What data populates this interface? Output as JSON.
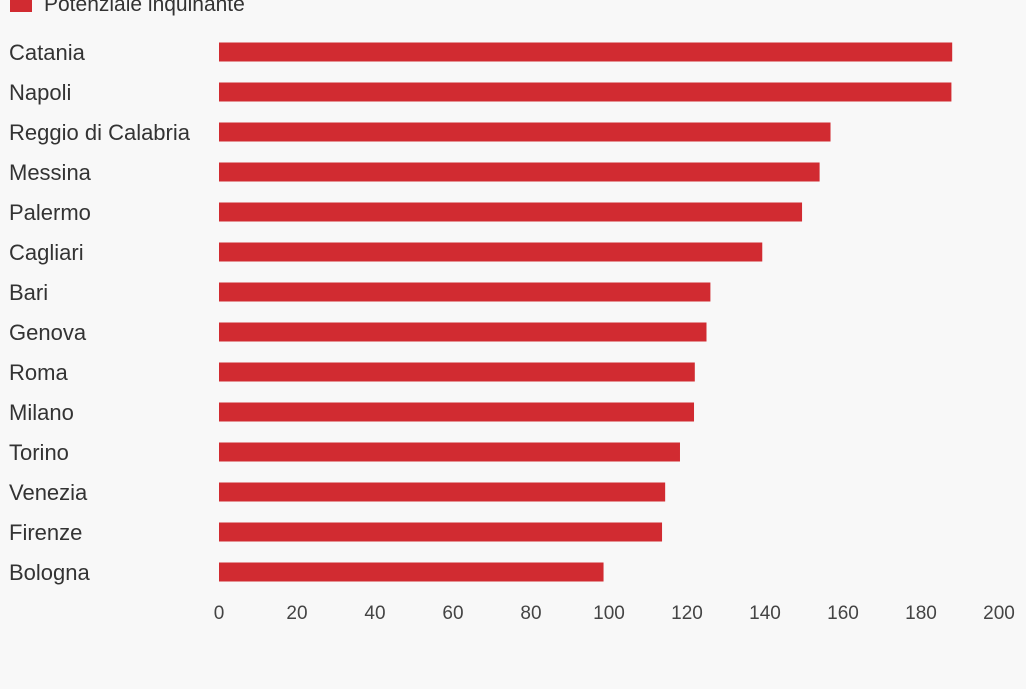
{
  "chart_data": {
    "type": "bar",
    "orientation": "horizontal",
    "categories": [
      "Catania",
      "Napoli",
      "Reggio di Calabria",
      "Messina",
      "Palermo",
      "Cagliari",
      "Bari",
      "Genova",
      "Roma",
      "Milano",
      "Torino",
      "Venezia",
      "Firenze",
      "Bologna"
    ],
    "series": [
      {
        "name": "Potenziale inquinante",
        "values": [
          188,
          187.8,
          156.8,
          154,
          149.5,
          139.3,
          126,
          125,
          122,
          121.8,
          118.2,
          114.4,
          113.6,
          98.6
        ],
        "color": "#d12b31"
      }
    ],
    "xlim": [
      0,
      200
    ],
    "xticks": [
      "0",
      "20",
      "40",
      "60",
      "80",
      "100",
      "120",
      "140",
      "160",
      "180",
      "200"
    ],
    "legend_position": "top-left",
    "grid": false,
    "colors": {
      "background": "#f8f8f8",
      "label_text": "#333333",
      "tick_text": "#444444"
    }
  }
}
